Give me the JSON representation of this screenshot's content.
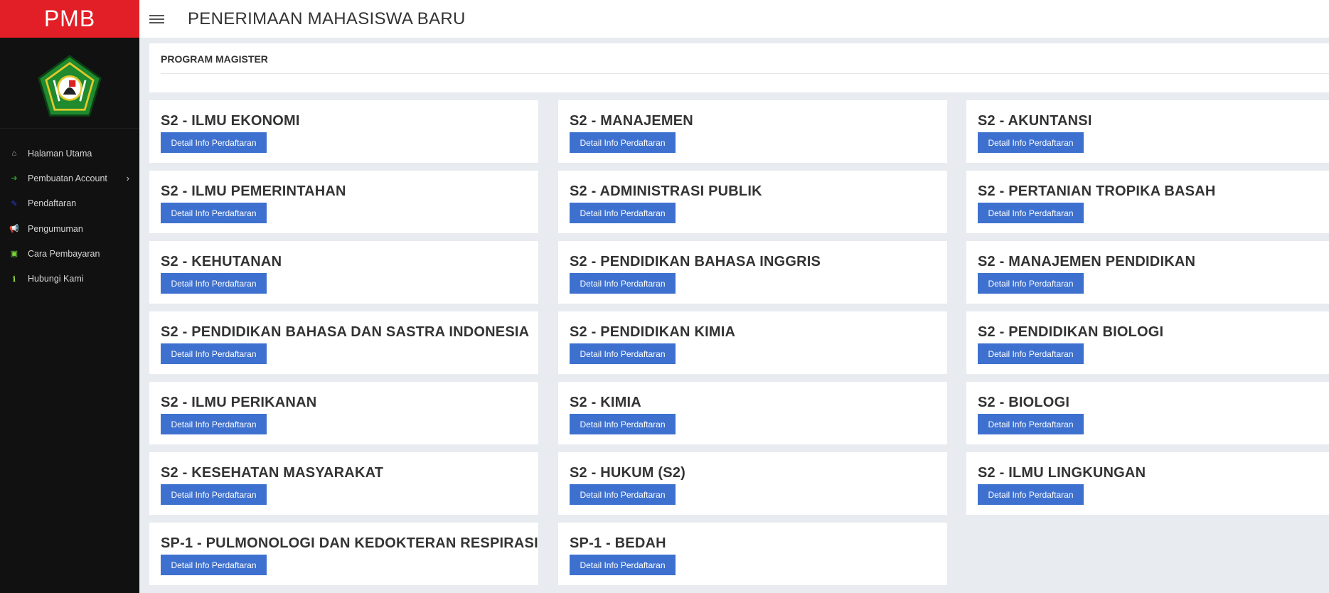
{
  "brand": "PMB",
  "header": {
    "title": "PENERIMAAN MAHASISWA BARU"
  },
  "sidebar": {
    "items": [
      {
        "label": "Halaman Utama",
        "icon": "home-icon",
        "color": "#bbbbbb",
        "glyph": "⌂"
      },
      {
        "label": "Pembuatan Account",
        "icon": "sign-in-icon",
        "color": "#2e9e2e",
        "glyph": "➜",
        "chevron": true
      },
      {
        "label": "Pendaftaran",
        "icon": "edit-icon",
        "color": "#2a3fdc",
        "glyph": "✎"
      },
      {
        "label": "Pengumuman",
        "icon": "bullhorn-icon",
        "color": "#e5e020",
        "glyph": "📢"
      },
      {
        "label": "Cara Pembayaran",
        "icon": "money-icon",
        "color": "#7ad83a",
        "glyph": "▣"
      },
      {
        "label": "Hubungi Kami",
        "icon": "info-icon",
        "color": "#9ae03a",
        "glyph": "ℹ"
      }
    ]
  },
  "panel": {
    "title": "PROGRAM MAGISTER"
  },
  "button_label": "Detail Info Perdaftaran",
  "programs": [
    "S2 - ILMU EKONOMI",
    "S2 - MANAJEMEN",
    "S2 - AKUNTANSI",
    "S2 - ILMU PEMERINTAHAN",
    "S2 - ADMINISTRASI PUBLIK",
    "S2 - PERTANIAN TROPIKA BASAH",
    "S2 - KEHUTANAN",
    "S2 - PENDIDIKAN BAHASA INGGRIS",
    "S2 - MANAJEMEN PENDIDIKAN",
    "S2 - PENDIDIKAN BAHASA DAN SASTRA INDONESIA",
    "S2 - PENDIDIKAN KIMIA",
    "S2 - PENDIDIKAN BIOLOGI",
    "S2 - ILMU PERIKANAN",
    "S2 - KIMIA",
    "S2 - BIOLOGI",
    "S2 - KESEHATAN MASYARAKAT",
    "S2 - HUKUM (S2)",
    "S2 - ILMU LINGKUNGAN",
    "SP-1 - PULMONOLOGI DAN KEDOKTERAN RESPIRASI",
    "SP-1 - BEDAH"
  ]
}
